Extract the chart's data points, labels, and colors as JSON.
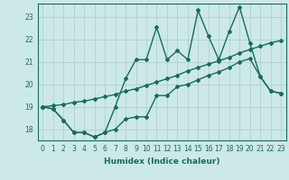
{
  "xlabel": "Humidex (Indice chaleur)",
  "xlim": [
    -0.5,
    23.5
  ],
  "ylim": [
    17.5,
    23.6
  ],
  "xticks": [
    0,
    1,
    2,
    3,
    4,
    5,
    6,
    7,
    8,
    9,
    10,
    11,
    12,
    13,
    14,
    15,
    16,
    17,
    18,
    19,
    20,
    21,
    22,
    23
  ],
  "yticks": [
    18,
    19,
    20,
    21,
    22,
    23
  ],
  "bg_color": "#cce8e8",
  "grid_color": "#aacccc",
  "line_color": "#1a6b5a",
  "line1_x": [
    0,
    1,
    2,
    3,
    4,
    5,
    6,
    7,
    8,
    9,
    10,
    11,
    12,
    13,
    14,
    15,
    16,
    17,
    18,
    19,
    20,
    21,
    22,
    23
  ],
  "line1_y": [
    19.0,
    18.9,
    18.4,
    17.85,
    17.85,
    17.65,
    17.85,
    18.0,
    18.45,
    18.55,
    18.55,
    19.5,
    19.5,
    19.9,
    20.0,
    20.2,
    20.4,
    20.55,
    20.75,
    21.0,
    21.15,
    20.35,
    19.7,
    19.6
  ],
  "line2_x": [
    0,
    1,
    2,
    3,
    4,
    5,
    6,
    7,
    8,
    9,
    10,
    11,
    12,
    13,
    14,
    15,
    16,
    17,
    18,
    19,
    20,
    21,
    22,
    23
  ],
  "line2_y": [
    19.0,
    19.05,
    19.1,
    19.2,
    19.25,
    19.35,
    19.45,
    19.55,
    19.7,
    19.8,
    19.95,
    20.1,
    20.25,
    20.4,
    20.6,
    20.75,
    20.9,
    21.05,
    21.2,
    21.4,
    21.55,
    21.7,
    21.85,
    21.95
  ],
  "line3_x": [
    0,
    1,
    2,
    3,
    4,
    5,
    6,
    7,
    8,
    9,
    10,
    11,
    12,
    13,
    14,
    15,
    16,
    17,
    18,
    19,
    20,
    21,
    22,
    23
  ],
  "line3_y": [
    19.0,
    18.9,
    18.4,
    17.85,
    17.85,
    17.65,
    17.85,
    19.0,
    20.25,
    21.1,
    21.1,
    22.55,
    21.1,
    21.5,
    21.1,
    23.3,
    22.15,
    21.1,
    22.35,
    23.45,
    21.85,
    20.35,
    19.7,
    19.6
  ],
  "marker": "D",
  "marker_size": 2,
  "line_width": 1.0,
  "font_color": "#1a6b5a",
  "tick_fontsize": 5.5,
  "xlabel_fontsize": 6.5
}
